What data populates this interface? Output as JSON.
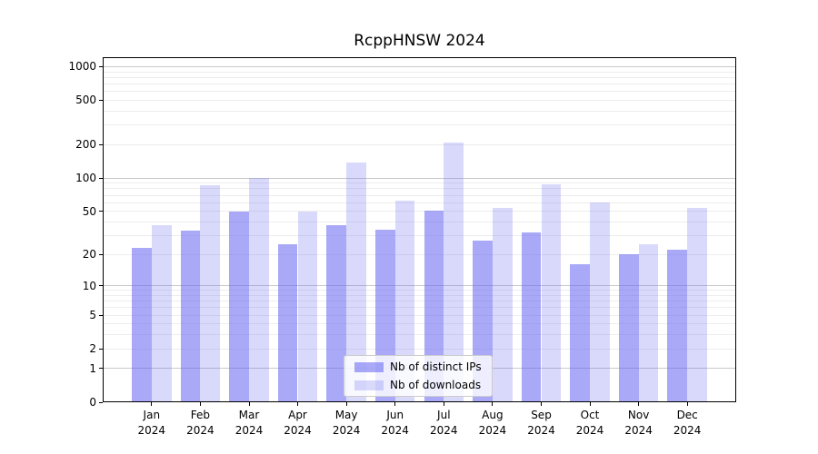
{
  "title": "RcppHNSW 2024",
  "chart_data": {
    "type": "bar",
    "title": "RcppHNSW 2024",
    "y_scale": "log1p",
    "grid": true,
    "legend_position": "lower center",
    "xlabel": "",
    "ylabel": "",
    "year_label": "2024",
    "categories": [
      "Jan",
      "Feb",
      "Mar",
      "Apr",
      "May",
      "Jun",
      "Jul",
      "Aug",
      "Sep",
      "Oct",
      "Nov",
      "Dec"
    ],
    "series": [
      {
        "name": "Nb of distinct IPs",
        "color": "rgba(98,98,242,0.55)",
        "values": [
          23,
          33,
          50,
          25,
          37,
          34,
          51,
          27,
          32,
          16,
          20,
          22
        ]
      },
      {
        "name": "Nb of downloads",
        "color": "rgba(98,98,242,0.24)",
        "values": [
          37,
          87,
          100,
          50,
          138,
          63,
          210,
          54,
          88,
          60,
          25,
          54
        ]
      }
    ],
    "y_ticks": [
      0,
      1,
      2,
      5,
      10,
      20,
      50,
      100,
      200,
      500,
      1000
    ],
    "ylim": [
      0,
      1215
    ]
  }
}
